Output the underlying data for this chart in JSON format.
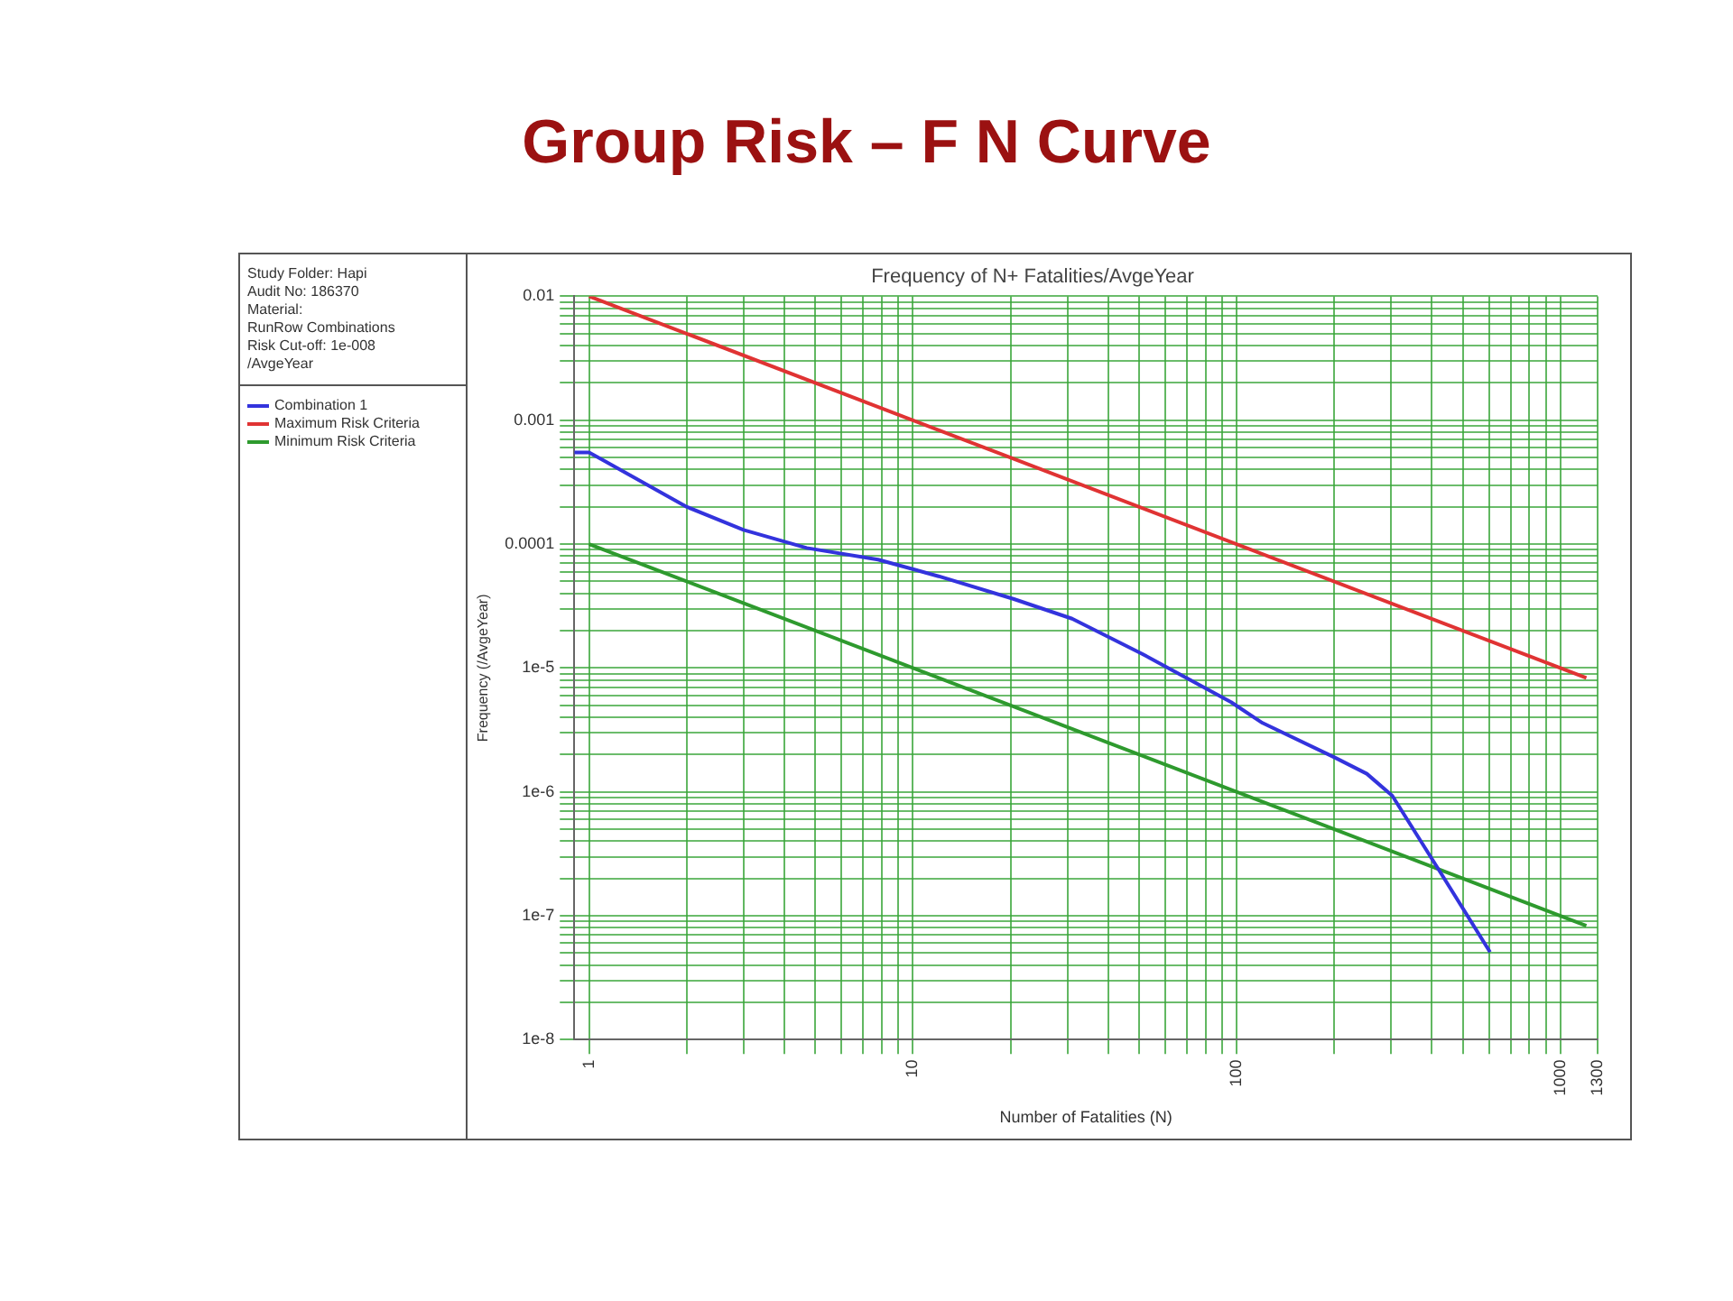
{
  "chart_data": {
    "type": "line",
    "title": "Group Risk – F N Curve",
    "subtitle": "Frequency of N+ Fatalities/AvgeYear",
    "xlabel": "Number of Fatalities (N)",
    "ylabel": "Frequency (/AvgeYear)",
    "annotations": [
      "Study Folder: Hapi",
      "Audit No: 186370",
      "Material:",
      "RunRow Combinations",
      "Risk Cut-off: 1e-008",
      "/AvgeYear"
    ],
    "log": "xy",
    "grid": true,
    "legend": "left",
    "marker": "none",
    "line_style": "solid",
    "xlim": [
      0.9,
      1300
    ],
    "ylim": [
      1e-08,
      0.01
    ],
    "xticks": [
      1,
      {
        "value": 2,
        "label": null
      },
      {
        "value": 3,
        "label": null
      },
      {
        "value": 4,
        "label": null
      },
      {
        "value": 5,
        "label": null
      },
      {
        "value": 6,
        "label": null
      },
      {
        "value": 7,
        "label": null
      },
      {
        "value": 8,
        "label": null
      },
      {
        "value": 9,
        "label": null
      },
      10,
      {
        "value": 20,
        "label": null
      },
      {
        "value": 30,
        "label": null
      },
      {
        "value": 40,
        "label": null
      },
      {
        "value": 50,
        "label": null
      },
      {
        "value": 60,
        "label": null
      },
      {
        "value": 70,
        "label": null
      },
      {
        "value": 80,
        "label": null
      },
      {
        "value": 90,
        "label": null
      },
      100,
      {
        "value": 200,
        "label": null
      },
      {
        "value": 300,
        "label": null
      },
      {
        "value": 400,
        "label": null
      },
      {
        "value": 500,
        "label": null
      },
      {
        "value": 600,
        "label": null
      },
      {
        "value": 700,
        "label": null
      },
      {
        "value": 800,
        "label": null
      },
      {
        "value": 900,
        "label": null
      },
      1000,
      1300
    ],
    "yticks": [
      {
        "value": 1e-08,
        "label": "1e-8"
      },
      {
        "value": 2e-08,
        "label": null
      },
      {
        "value": 3e-08,
        "label": null
      },
      {
        "value": 4e-08,
        "label": null
      },
      {
        "value": 5e-08,
        "label": null
      },
      {
        "value": 6e-08,
        "label": null
      },
      {
        "value": 7e-08,
        "label": null
      },
      {
        "value": 8e-08,
        "label": null
      },
      {
        "value": 9e-08,
        "label": null
      },
      {
        "value": 1e-07,
        "label": "1e-7"
      },
      {
        "value": 2e-07,
        "label": null
      },
      {
        "value": 3e-07,
        "label": null
      },
      {
        "value": 4e-07,
        "label": null
      },
      {
        "value": 5e-07,
        "label": null
      },
      {
        "value": 6e-07,
        "label": null
      },
      {
        "value": 7e-07,
        "label": null
      },
      {
        "value": 8e-07,
        "label": null
      },
      {
        "value": 9e-07,
        "label": null
      },
      {
        "value": 1e-06,
        "label": "1e-6"
      },
      {
        "value": 2e-06,
        "label": null
      },
      {
        "value": 3e-06,
        "label": null
      },
      {
        "value": 4e-06,
        "label": null
      },
      {
        "value": 5e-06,
        "label": null
      },
      {
        "value": 6e-06,
        "label": null
      },
      {
        "value": 7e-06,
        "label": null
      },
      {
        "value": 8e-06,
        "label": null
      },
      {
        "value": 9e-06,
        "label": null
      },
      {
        "value": 1e-05,
        "label": "1e-5"
      },
      {
        "value": 2e-05,
        "label": null
      },
      {
        "value": 3e-05,
        "label": null
      },
      {
        "value": 4e-05,
        "label": null
      },
      {
        "value": 5e-05,
        "label": null
      },
      {
        "value": 6e-05,
        "label": null
      },
      {
        "value": 7e-05,
        "label": null
      },
      {
        "value": 8e-05,
        "label": null
      },
      {
        "value": 9e-05,
        "label": null
      },
      {
        "value": 0.0001,
        "label": "0.0001"
      },
      {
        "value": 0.0002,
        "label": null
      },
      {
        "value": 0.0003,
        "label": null
      },
      {
        "value": 0.0004,
        "label": null
      },
      {
        "value": 0.0005,
        "label": null
      },
      {
        "value": 0.0006,
        "label": null
      },
      {
        "value": 0.0007,
        "label": null
      },
      {
        "value": 0.0008,
        "label": null
      },
      {
        "value": 0.0009,
        "label": null
      },
      {
        "value": 0.001,
        "label": "0.001"
      },
      {
        "value": 0.002,
        "label": null
      },
      {
        "value": 0.003,
        "label": null
      },
      {
        "value": 0.004,
        "label": null
      },
      {
        "value": 0.005,
        "label": null
      },
      {
        "value": 0.006,
        "label": null
      },
      {
        "value": 0.007,
        "label": null
      },
      {
        "value": 0.008,
        "label": null
      },
      {
        "value": 0.009,
        "label": null
      },
      {
        "value": 0.01,
        "label": "0.01"
      }
    ],
    "series": [
      {
        "name": "Combination 1",
        "color": "#3333dd",
        "x": [
          0.9,
          1,
          2,
          3,
          4.7,
          7.8,
          12,
          20.5,
          31,
          51,
          96,
          120,
          200,
          252,
          302,
          427,
          605
        ],
        "values": [
          0.00055,
          0.00055,
          0.0002,
          0.00013,
          9.3e-05,
          7.5e-05,
          5.5e-05,
          3.6e-05,
          2.5e-05,
          1.3e-05,
          5.3e-06,
          3.6e-06,
          1.9e-06,
          1.4e-06,
          9.3e-07,
          2.2e-07,
          5.1e-08
        ]
      },
      {
        "name": "Maximum Risk Criteria",
        "color": "#e03333",
        "x": [
          1,
          1200
        ],
        "values": [
          0.01,
          8.3e-06
        ]
      },
      {
        "name": "Minimum Risk Criteria",
        "color": "#2e9a2e",
        "x": [
          1,
          1200
        ],
        "values": [
          0.0001,
          8.3e-08
        ]
      }
    ]
  }
}
